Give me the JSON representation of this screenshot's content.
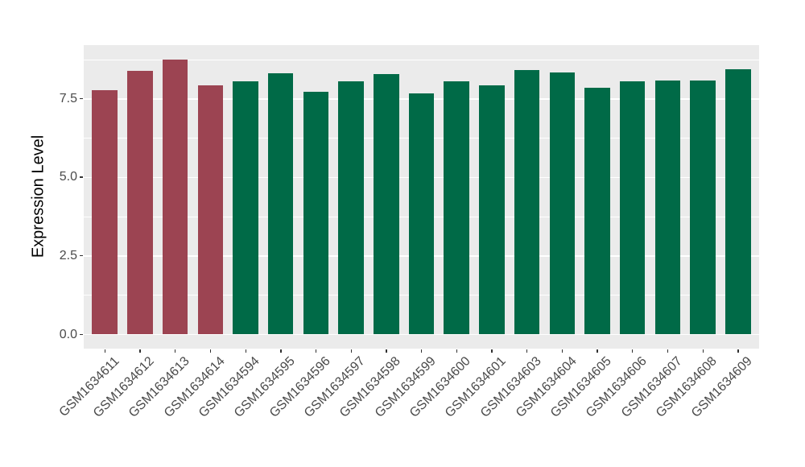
{
  "chart_data": {
    "type": "bar",
    "title": "",
    "xlabel": "",
    "ylabel": "Expression Level",
    "ylim": [
      0,
      9.2
    ],
    "grid": true,
    "legend_position": "none",
    "ytick_values": [
      0,
      2.5,
      5,
      7.5
    ],
    "ytick_labels": [
      "0.0",
      "2.5",
      "5.0",
      "7.5"
    ],
    "minor_grid_values": [
      1.25,
      3.75,
      6.25,
      8.75
    ],
    "categories": [
      "GSM1634611",
      "GSM1634612",
      "GSM1634613",
      "GSM1634614",
      "GSM1634594",
      "GSM1634595",
      "GSM1634596",
      "GSM1634597",
      "GSM1634598",
      "GSM1634599",
      "GSM1634600",
      "GSM1634601",
      "GSM1634603",
      "GSM1634604",
      "GSM1634605",
      "GSM1634606",
      "GSM1634607",
      "GSM1634608",
      "GSM1634609"
    ],
    "values": [
      7.77,
      8.37,
      8.75,
      7.93,
      8.05,
      8.3,
      7.72,
      8.05,
      8.29,
      7.66,
      8.05,
      7.91,
      8.41,
      8.34,
      7.84,
      8.05,
      8.06,
      8.07,
      8.42
    ],
    "bar_colors": [
      "#9C4452",
      "#9C4452",
      "#9C4452",
      "#9C4452",
      "#006A47",
      "#006A47",
      "#006A47",
      "#006A47",
      "#006A47",
      "#006A47",
      "#006A47",
      "#006A47",
      "#006A47",
      "#006A47",
      "#006A47",
      "#006A47",
      "#006A47",
      "#006A47",
      "#006A47"
    ]
  },
  "style_colors": {
    "panel_background": "#EBEBEB",
    "gridline": "#FFFFFF",
    "tick_text": "#4a4a4a",
    "axis_title_text": "#000000",
    "group_highlight": "#9C4452",
    "group_default": "#006A47"
  }
}
